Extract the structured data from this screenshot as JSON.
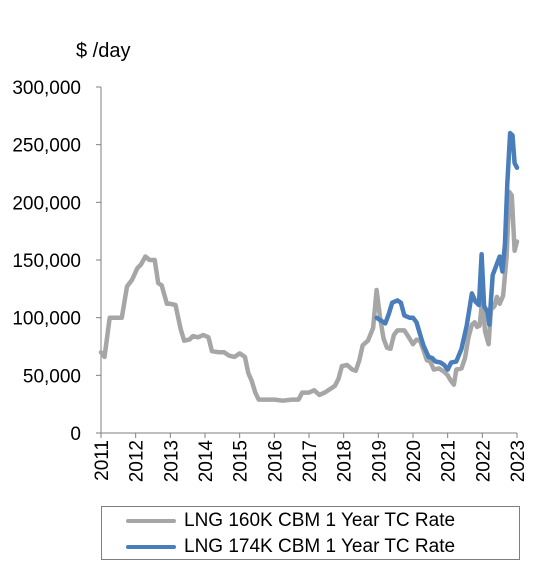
{
  "chart_data": {
    "type": "line",
    "title": "",
    "ylabel": "$ /day",
    "xlabel": "",
    "ylim": [
      0,
      300000
    ],
    "xlim": [
      2011,
      2023
    ],
    "ytick_values": [
      0,
      50000,
      100000,
      150000,
      200000,
      250000,
      300000
    ],
    "yticks": [
      "0",
      "50,000",
      "100,000",
      "150,000",
      "200,000",
      "250,000",
      "300,000"
    ],
    "xtick_values": [
      2011,
      2012,
      2013,
      2014,
      2015,
      2016,
      2017,
      2018,
      2019,
      2020,
      2021,
      2022,
      2023
    ],
    "xticks": [
      "2011",
      "2012",
      "2013",
      "2014",
      "2015",
      "2016",
      "2017",
      "2018",
      "2019",
      "2020",
      "2021",
      "2022",
      "2023"
    ],
    "grid": false,
    "legend_position": "bottom",
    "series": [
      {
        "name": "LNG 160K CBM 1 Year TC Rate",
        "color": "#a6a6a6",
        "points": [
          [
            2011.0,
            70000
          ],
          [
            2011.1,
            66000
          ],
          [
            2011.25,
            100000
          ],
          [
            2011.5,
            100000
          ],
          [
            2011.6,
            100000
          ],
          [
            2011.75,
            127000
          ],
          [
            2011.9,
            133000
          ],
          [
            2012.05,
            143000
          ],
          [
            2012.15,
            146000
          ],
          [
            2012.28,
            153000
          ],
          [
            2012.4,
            150000
          ],
          [
            2012.55,
            150000
          ],
          [
            2012.65,
            130000
          ],
          [
            2012.75,
            128000
          ],
          [
            2012.9,
            112000
          ],
          [
            2013.0,
            112000
          ],
          [
            2013.15,
            111000
          ],
          [
            2013.3,
            90000
          ],
          [
            2013.4,
            80000
          ],
          [
            2013.55,
            81000
          ],
          [
            2013.65,
            84000
          ],
          [
            2013.8,
            83000
          ],
          [
            2013.95,
            85000
          ],
          [
            2014.1,
            83000
          ],
          [
            2014.2,
            71000
          ],
          [
            2014.4,
            70000
          ],
          [
            2014.55,
            70000
          ],
          [
            2014.7,
            67000
          ],
          [
            2014.85,
            66000
          ],
          [
            2015.0,
            69000
          ],
          [
            2015.15,
            66000
          ],
          [
            2015.25,
            52000
          ],
          [
            2015.35,
            45000
          ],
          [
            2015.45,
            35000
          ],
          [
            2015.55,
            29000
          ],
          [
            2015.75,
            29000
          ],
          [
            2016.0,
            29000
          ],
          [
            2016.25,
            28000
          ],
          [
            2016.5,
            29000
          ],
          [
            2016.7,
            29000
          ],
          [
            2016.8,
            35000
          ],
          [
            2017.0,
            35000
          ],
          [
            2017.15,
            37000
          ],
          [
            2017.3,
            33000
          ],
          [
            2017.45,
            35000
          ],
          [
            2017.6,
            38000
          ],
          [
            2017.75,
            41000
          ],
          [
            2017.85,
            47000
          ],
          [
            2017.95,
            58000
          ],
          [
            2018.1,
            59000
          ],
          [
            2018.25,
            55000
          ],
          [
            2018.35,
            54000
          ],
          [
            2018.45,
            63000
          ],
          [
            2018.55,
            76000
          ],
          [
            2018.7,
            80000
          ],
          [
            2018.85,
            91000
          ],
          [
            2018.95,
            124000
          ],
          [
            2019.05,
            100000
          ],
          [
            2019.15,
            82000
          ],
          [
            2019.25,
            74000
          ],
          [
            2019.35,
            73000
          ],
          [
            2019.45,
            85000
          ],
          [
            2019.55,
            89000
          ],
          [
            2019.75,
            89000
          ],
          [
            2019.9,
            82000
          ],
          [
            2020.0,
            77000
          ],
          [
            2020.1,
            81000
          ],
          [
            2020.2,
            80000
          ],
          [
            2020.3,
            72000
          ],
          [
            2020.4,
            63000
          ],
          [
            2020.5,
            62000
          ],
          [
            2020.6,
            55000
          ],
          [
            2020.75,
            56000
          ],
          [
            2020.9,
            53000
          ],
          [
            2021.0,
            50000
          ],
          [
            2021.1,
            45000
          ],
          [
            2021.18,
            42000
          ],
          [
            2021.25,
            55000
          ],
          [
            2021.4,
            56000
          ],
          [
            2021.5,
            65000
          ],
          [
            2021.6,
            83000
          ],
          [
            2021.7,
            94000
          ],
          [
            2021.78,
            96000
          ],
          [
            2021.85,
            92000
          ],
          [
            2021.92,
            93000
          ],
          [
            2022.0,
            116000
          ],
          [
            2022.08,
            88000
          ],
          [
            2022.18,
            77000
          ],
          [
            2022.25,
            107000
          ],
          [
            2022.35,
            110000
          ],
          [
            2022.42,
            118000
          ],
          [
            2022.5,
            112000
          ],
          [
            2022.6,
            119000
          ],
          [
            2022.7,
            153000
          ],
          [
            2022.78,
            209000
          ],
          [
            2022.85,
            206000
          ],
          [
            2022.93,
            158000
          ],
          [
            2023.0,
            166000
          ]
        ]
      },
      {
        "name": "LNG 174K CBM 1 Year TC Rate",
        "color": "#4a7ebb",
        "points": [
          [
            2018.95,
            100000
          ],
          [
            2019.1,
            97000
          ],
          [
            2019.2,
            95000
          ],
          [
            2019.3,
            103000
          ],
          [
            2019.4,
            113000
          ],
          [
            2019.55,
            115000
          ],
          [
            2019.65,
            113000
          ],
          [
            2019.75,
            102000
          ],
          [
            2019.9,
            100000
          ],
          [
            2020.0,
            100000
          ],
          [
            2020.1,
            96000
          ],
          [
            2020.2,
            86000
          ],
          [
            2020.3,
            76000
          ],
          [
            2020.45,
            66000
          ],
          [
            2020.55,
            65000
          ],
          [
            2020.65,
            62000
          ],
          [
            2020.8,
            61000
          ],
          [
            2020.9,
            59000
          ],
          [
            2021.0,
            55000
          ],
          [
            2021.1,
            61000
          ],
          [
            2021.25,
            62000
          ],
          [
            2021.4,
            73000
          ],
          [
            2021.55,
            93000
          ],
          [
            2021.7,
            121000
          ],
          [
            2021.8,
            114000
          ],
          [
            2021.9,
            111000
          ],
          [
            2021.98,
            155000
          ],
          [
            2022.05,
            110000
          ],
          [
            2022.15,
            105000
          ],
          [
            2022.2,
            94000
          ],
          [
            2022.3,
            137000
          ],
          [
            2022.4,
            145000
          ],
          [
            2022.5,
            153000
          ],
          [
            2022.58,
            140000
          ],
          [
            2022.65,
            163000
          ],
          [
            2022.72,
            216000
          ],
          [
            2022.8,
            260000
          ],
          [
            2022.87,
            258000
          ],
          [
            2022.93,
            234000
          ],
          [
            2023.0,
            230000
          ]
        ]
      }
    ]
  }
}
